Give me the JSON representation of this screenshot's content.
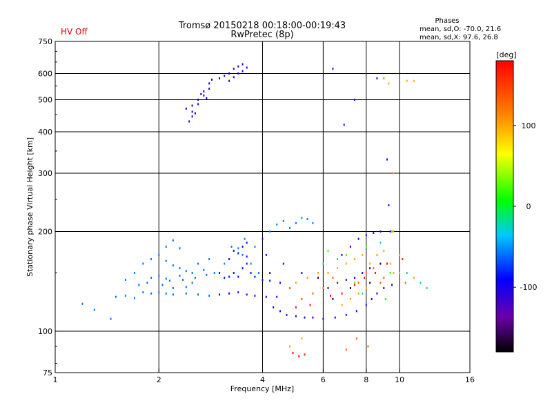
{
  "header": {
    "title_line1": "Tromsø 20150218 00:18:00-00:19:43",
    "title_line2": "RwPretec (8p)",
    "status": "HV Off",
    "status_color": "#d00000",
    "stats_heading": "Phases",
    "stats_o": "mean, sd,O: -70.0, 21.6",
    "stats_x": "mean, sd,X:  97.6, 26.8"
  },
  "chart_data": {
    "type": "scatter",
    "xlabel": "Frequency [MHz]",
    "ylabel": "Stationary phase Virtual Height [km]",
    "xscale": "log2",
    "yscale": "log",
    "xlim": [
      1,
      16
    ],
    "ylim": [
      75,
      750
    ],
    "xticks": [
      {
        "v": 1,
        "label": "1"
      },
      {
        "v": 2,
        "label": "2"
      },
      {
        "v": 4,
        "label": "4"
      },
      {
        "v": 6,
        "label": "6"
      },
      {
        "v": 8,
        "label": "8"
      },
      {
        "v": 10,
        "label": "10"
      },
      {
        "v": 16,
        "label": "16"
      }
    ],
    "yticks": [
      {
        "v": 75,
        "label": "75"
      },
      {
        "v": 100,
        "label": "100"
      },
      {
        "v": 200,
        "label": "200"
      },
      {
        "v": 300,
        "label": "300"
      },
      {
        "v": 400,
        "label": "400"
      },
      {
        "v": 500,
        "label": "500"
      },
      {
        "v": 600,
        "label": "600"
      },
      {
        "v": 750,
        "label": "750"
      }
    ],
    "grid_x": [
      2,
      4,
      6,
      8,
      10
    ],
    "grid_y": [
      100,
      200,
      300,
      400,
      500,
      600
    ],
    "colorbar": {
      "unit_label": "[deg]",
      "range": [
        -180,
        180
      ],
      "ticks": [
        {
          "v": 100,
          "label": "100"
        },
        {
          "v": 0,
          "label": "0"
        },
        {
          "v": -100,
          "label": "-100"
        }
      ],
      "stops": [
        "#000000",
        "#6a00a8",
        "#0000ff",
        "#00c8ff",
        "#00ff00",
        "#ffff00",
        "#ff8000",
        "#ff0000"
      ]
    },
    "series": [
      {
        "phase": -60,
        "points": [
          [
            1.2,
            121
          ],
          [
            1.3,
            116
          ],
          [
            1.45,
            109
          ],
          [
            1.5,
            127
          ],
          [
            1.6,
            128
          ],
          [
            1.7,
            126
          ],
          [
            1.8,
            131
          ],
          [
            1.9,
            130
          ],
          [
            2.0,
            131
          ],
          [
            2.1,
            130
          ],
          [
            2.2,
            129
          ],
          [
            2.4,
            130
          ],
          [
            2.6,
            129
          ],
          [
            2.8,
            128
          ],
          [
            1.6,
            143
          ],
          [
            1.7,
            150
          ],
          [
            1.8,
            160
          ],
          [
            1.9,
            165
          ],
          [
            2.0,
            170
          ],
          [
            2.1,
            163
          ],
          [
            2.2,
            158
          ],
          [
            2.3,
            155
          ],
          [
            2.4,
            152
          ],
          [
            2.5,
            150
          ],
          [
            2.7,
            153
          ],
          [
            2.9,
            150
          ],
          [
            2.1,
            180
          ],
          [
            2.2,
            188
          ],
          [
            2.3,
            178
          ],
          [
            1.9,
            145
          ],
          [
            2.0,
            147
          ],
          [
            2.1,
            144
          ],
          [
            2.3,
            147
          ],
          [
            2.5,
            140
          ],
          [
            2.6,
            160
          ],
          [
            2.8,
            165
          ],
          [
            2.2,
            135
          ],
          [
            2.4,
            136
          ],
          [
            1.75,
            138
          ],
          [
            1.85,
            140
          ],
          [
            2.05,
            138
          ],
          [
            2.15,
            142
          ],
          [
            2.35,
            143
          ],
          [
            2.55,
            145
          ],
          [
            2.75,
            148
          ]
        ]
      },
      {
        "phase": -85,
        "points": [
          [
            3.0,
            129
          ],
          [
            3.2,
            130
          ],
          [
            3.4,
            131
          ],
          [
            3.6,
            129
          ],
          [
            3.8,
            128
          ],
          [
            4.1,
            127
          ],
          [
            4.4,
            127
          ],
          [
            3.2,
            146
          ],
          [
            3.3,
            150
          ],
          [
            3.4,
            146
          ],
          [
            3.5,
            155
          ],
          [
            3.6,
            160
          ],
          [
            3.2,
            165
          ],
          [
            3.4,
            172
          ],
          [
            3.5,
            180
          ],
          [
            3.6,
            185
          ],
          [
            3.3,
            175
          ],
          [
            3.6,
            168
          ],
          [
            3.0,
            150
          ],
          [
            3.1,
            145
          ],
          [
            3.7,
            150
          ],
          [
            3.8,
            146
          ],
          [
            4.0,
            143
          ],
          [
            4.2,
            142
          ],
          [
            4.5,
            140
          ]
        ]
      },
      {
        "phase": -55,
        "points": [
          [
            3.1,
            160
          ],
          [
            3.25,
            180
          ],
          [
            3.4,
            178
          ],
          [
            3.5,
            170
          ],
          [
            3.55,
            190
          ],
          [
            3.7,
            160
          ],
          [
            3.8,
            180
          ],
          [
            3.9,
            150
          ],
          [
            4.2,
            200
          ],
          [
            4.4,
            210
          ],
          [
            4.6,
            215
          ],
          [
            4.8,
            205
          ],
          [
            5.0,
            212
          ],
          [
            5.2,
            220
          ],
          [
            5.4,
            218
          ],
          [
            5.6,
            212
          ]
        ]
      },
      {
        "phase": -95,
        "points": [
          [
            2.4,
            470
          ],
          [
            2.5,
            480
          ],
          [
            2.6,
            500
          ],
          [
            2.7,
            530
          ],
          [
            2.8,
            560
          ],
          [
            2.5,
            445
          ],
          [
            2.55,
            455
          ],
          [
            2.65,
            520
          ],
          [
            2.75,
            505
          ],
          [
            2.45,
            430
          ],
          [
            2.5,
            460
          ],
          [
            2.6,
            485
          ],
          [
            2.7,
            515
          ],
          [
            2.8,
            540
          ],
          [
            2.85,
            575
          ]
        ]
      },
      {
        "phase": -105,
        "points": [
          [
            3.1,
            590
          ],
          [
            3.2,
            600
          ],
          [
            3.3,
            620
          ],
          [
            3.4,
            630
          ],
          [
            3.5,
            610
          ],
          [
            3.2,
            570
          ],
          [
            3.3,
            585
          ],
          [
            3.4,
            600
          ],
          [
            3.0,
            580
          ],
          [
            3.5,
            640
          ],
          [
            3.6,
            625
          ]
        ]
      },
      {
        "phase": -110,
        "points": [
          [
            4.3,
            118
          ],
          [
            4.5,
            115
          ],
          [
            4.7,
            112
          ],
          [
            5.0,
            111
          ],
          [
            5.3,
            110
          ],
          [
            5.6,
            110
          ],
          [
            6.0,
            109
          ],
          [
            6.5,
            110
          ],
          [
            7.0,
            112
          ],
          [
            7.5,
            115
          ],
          [
            8.0,
            120
          ],
          [
            8.3,
            125
          ],
          [
            8.6,
            130
          ],
          [
            9.0,
            135
          ],
          [
            9.5,
            138
          ],
          [
            6.2,
            135
          ],
          [
            6.6,
            140
          ],
          [
            7.0,
            143
          ],
          [
            7.4,
            145
          ],
          [
            7.8,
            150
          ],
          [
            8.2,
            155
          ],
          [
            6.8,
            170
          ],
          [
            7.2,
            180
          ],
          [
            7.6,
            190
          ],
          [
            8.0,
            195
          ],
          [
            8.4,
            198
          ],
          [
            8.8,
            200
          ],
          [
            4.0,
            190
          ],
          [
            4.1,
            170
          ],
          [
            4.2,
            150
          ],
          [
            4.6,
            160
          ],
          [
            5.2,
            150
          ],
          [
            6.4,
            620
          ],
          [
            6.9,
            420
          ],
          [
            7.4,
            500
          ],
          [
            8.6,
            580
          ],
          [
            9.2,
            330
          ],
          [
            9.3,
            240
          ],
          [
            9.4,
            200
          ]
        ]
      },
      {
        "phase": 100,
        "points": [
          [
            5.0,
            140
          ],
          [
            5.4,
            145
          ],
          [
            5.8,
            150
          ],
          [
            6.2,
            150
          ],
          [
            6.6,
            155
          ],
          [
            7.0,
            160
          ],
          [
            7.4,
            165
          ],
          [
            7.8,
            170
          ],
          [
            8.2,
            160
          ],
          [
            8.6,
            170
          ],
          [
            9.0,
            175
          ],
          [
            9.4,
            160
          ],
          [
            9.6,
            150
          ],
          [
            10.0,
            150
          ],
          [
            11.0,
            145
          ],
          [
            11.5,
            140
          ],
          [
            6.8,
            120
          ],
          [
            7.2,
            125
          ],
          [
            7.6,
            130
          ],
          [
            8.0,
            135
          ],
          [
            4.8,
            90
          ],
          [
            5.2,
            95
          ],
          [
            9.0,
            580
          ],
          [
            9.3,
            560
          ],
          [
            10.5,
            570
          ],
          [
            11.0,
            570
          ],
          [
            9.6,
            300
          ],
          [
            9.5,
            200
          ],
          [
            10.0,
            170
          ]
        ]
      },
      {
        "phase": 130,
        "points": [
          [
            4.8,
            135
          ],
          [
            5.2,
            125
          ],
          [
            5.6,
            130
          ],
          [
            6.0,
            135
          ],
          [
            6.4,
            145
          ],
          [
            7.2,
            135
          ],
          [
            7.6,
            140
          ],
          [
            8.0,
            150
          ],
          [
            8.4,
            155
          ],
          [
            8.8,
            140
          ],
          [
            9.0,
            145
          ],
          [
            10.4,
            140
          ],
          [
            7.0,
            88
          ],
          [
            7.5,
            95
          ],
          [
            8.1,
            90
          ]
        ]
      },
      {
        "phase": 170,
        "points": [
          [
            5.0,
            118
          ],
          [
            5.5,
            120
          ],
          [
            6.3,
            128
          ],
          [
            6.8,
            130
          ],
          [
            7.4,
            138
          ],
          [
            7.9,
            145
          ],
          [
            8.5,
            150
          ],
          [
            9.2,
            160
          ],
          [
            10.2,
            165
          ],
          [
            4.9,
            86
          ],
          [
            5.1,
            84
          ],
          [
            5.3,
            85
          ]
        ]
      },
      {
        "phase": 20,
        "points": [
          [
            6.2,
            175
          ],
          [
            7.0,
            170
          ],
          [
            8.0,
            180
          ],
          [
            9.1,
            125
          ],
          [
            9.4,
            150
          ],
          [
            9.6,
            200
          ],
          [
            9.0,
            580
          ],
          [
            7.4,
            140
          ]
        ]
      },
      {
        "phase": -20,
        "points": [
          [
            6.0,
            160
          ],
          [
            6.6,
            165
          ],
          [
            7.8,
            130
          ],
          [
            8.8,
            185
          ],
          [
            10.5,
            150
          ],
          [
            11.5,
            140
          ],
          [
            12.0,
            135
          ]
        ]
      },
      {
        "phase": -160,
        "points": [
          [
            5.8,
            145
          ],
          [
            6.4,
            125
          ],
          [
            7.2,
            135
          ],
          [
            8.2,
            140
          ],
          [
            8.8,
            160
          ]
        ]
      }
    ]
  }
}
